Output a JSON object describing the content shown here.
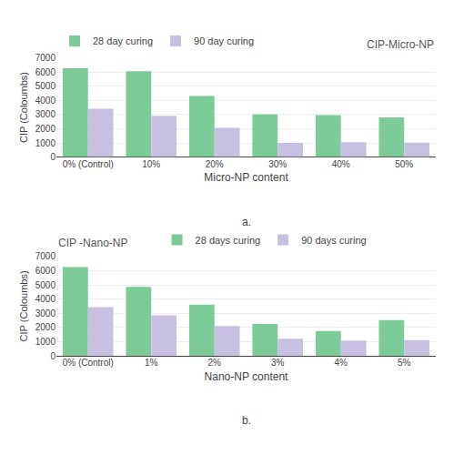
{
  "chart_data": [
    {
      "type": "bar",
      "title": "CIP-Micro-NP",
      "categories": [
        "0% (Control)",
        "10%",
        "20%",
        "30%",
        "40%",
        "50%"
      ],
      "series": [
        {
          "name": "28 day curing",
          "color": "#7ecb9a",
          "values": [
            6250,
            6050,
            4300,
            3000,
            2950,
            2800
          ]
        },
        {
          "name": "90 day curing",
          "color": "#c8c0e0",
          "values": [
            3400,
            2900,
            2050,
            1000,
            1050,
            1020
          ]
        }
      ],
      "xlabel": "Micro-NP content",
      "ylabel": "CIP (Coloumbs)",
      "annotations": [
        "a."
      ],
      "ylim": [
        0,
        7000
      ],
      "yticks": [
        0,
        1000,
        2000,
        3000,
        4000,
        5000,
        6000,
        7000
      ],
      "grid": true
    },
    {
      "type": "bar",
      "title": "CIP -Nano-NP",
      "categories": [
        "0% (Control)",
        "1%",
        "2%",
        "3%",
        "4%",
        "5%"
      ],
      "series": [
        {
          "name": "28 days curing",
          "color": "#7ecb9a",
          "values": [
            6250,
            4850,
            3600,
            2250,
            1750,
            2520
          ]
        },
        {
          "name": "90 days curing",
          "color": "#c8c0e0",
          "values": [
            3430,
            2850,
            2100,
            1200,
            1080,
            1100
          ]
        }
      ],
      "xlabel": "Nano-NP content",
      "ylabel": "CIP (Coloumbs)",
      "annotations": [
        "b."
      ],
      "ylim": [
        0,
        7000
      ],
      "yticks": [
        0,
        1000,
        2000,
        3000,
        4000,
        5000,
        6000,
        7000
      ],
      "grid": true
    }
  ]
}
